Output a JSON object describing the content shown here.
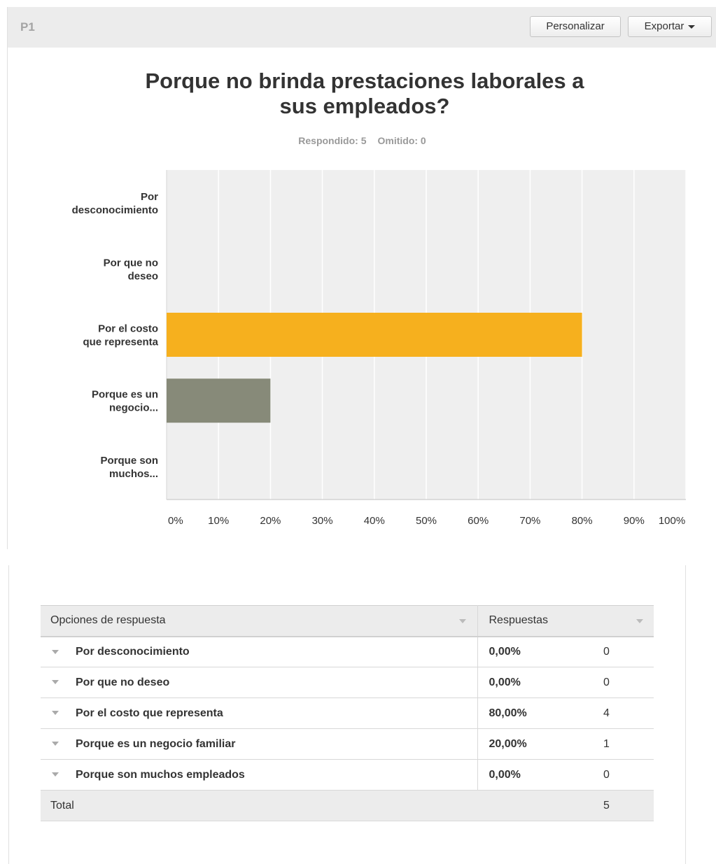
{
  "header": {
    "question_number": "P1",
    "customize_label": "Personalizar",
    "export_label": "Exportar"
  },
  "title": "Porque no brinda prestaciones laborales a sus empleados?",
  "stats": {
    "answered": "Respondido: 5",
    "skipped": "Omitido: 0"
  },
  "chart_data": {
    "type": "bar",
    "orientation": "horizontal",
    "title": "Porque no brinda prestaciones laborales a sus empleados?",
    "categories": [
      [
        "Por",
        "desconocimiento"
      ],
      [
        "Por que no",
        "deseo"
      ],
      [
        "Por el costo",
        "que representa"
      ],
      [
        "Porque es un",
        "negocio..."
      ],
      [
        "Porque son",
        "muchos..."
      ]
    ],
    "values": [
      0,
      0,
      80,
      20,
      0
    ],
    "bar_colors": [
      "#f6b01e",
      "#f6b01e",
      "#f6b01e",
      "#878a79",
      "#f6b01e"
    ],
    "xlim": [
      0,
      100
    ],
    "x_ticks": [
      "0%",
      "10%",
      "20%",
      "30%",
      "40%",
      "50%",
      "60%",
      "70%",
      "80%",
      "90%",
      "100%"
    ],
    "grid": true,
    "background": "#efefef"
  },
  "table": {
    "headers": {
      "option": "Opciones de respuesta",
      "responses": "Respuestas"
    },
    "rows": [
      {
        "option": "Por desconocimiento",
        "percent": "0,00%",
        "count": "0"
      },
      {
        "option": "Por que no deseo",
        "percent": "0,00%",
        "count": "0"
      },
      {
        "option": "Por el costo que representa",
        "percent": "80,00%",
        "count": "4"
      },
      {
        "option": "Porque es un negocio familiar",
        "percent": "20,00%",
        "count": "1"
      },
      {
        "option": "Porque son muchos empleados",
        "percent": "0,00%",
        "count": "0"
      }
    ],
    "total_label": "Total",
    "total_count": "5"
  }
}
